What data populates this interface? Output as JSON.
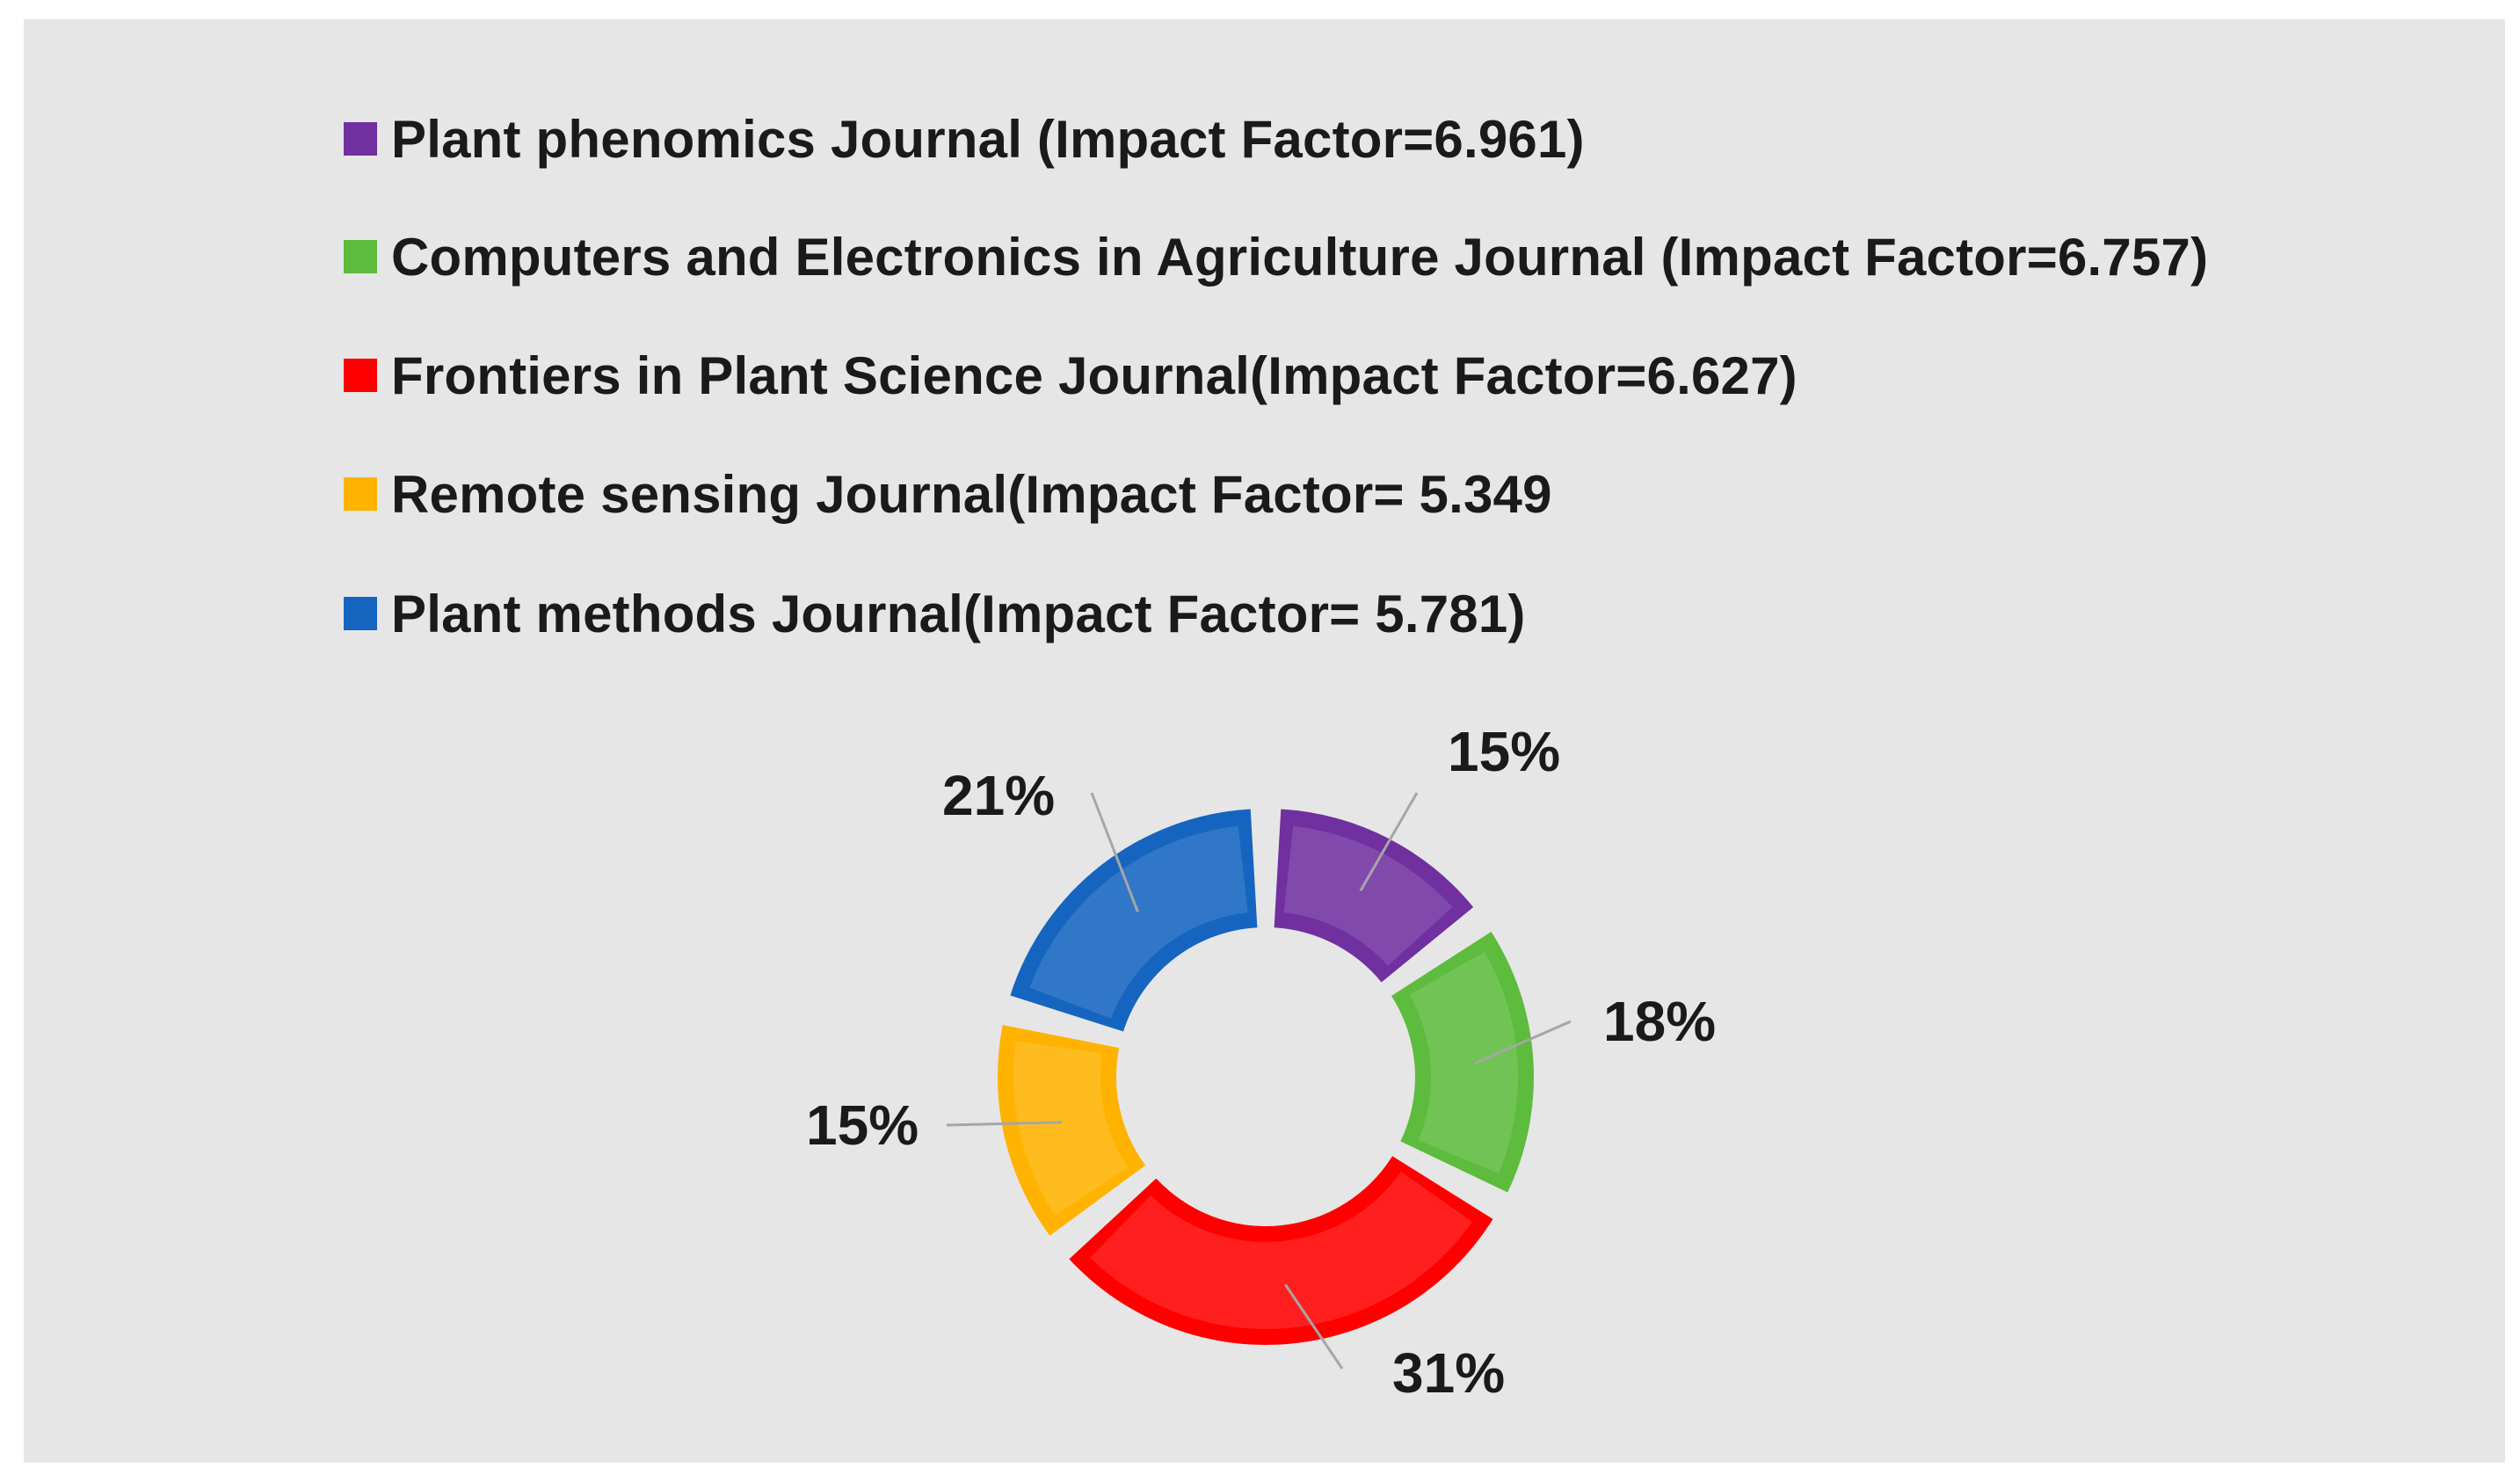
{
  "chart_data": {
    "type": "pie",
    "donut": true,
    "title": "",
    "legend_position": "top",
    "series": [
      {
        "name": "Plant phenomics Journal (Impact Factor=6.961)",
        "value": 15,
        "label": "15%",
        "color": "#7030a0"
      },
      {
        "name": "Computers and Electronics in Agriculture Journal (Impact Factor=6.757)",
        "value": 18,
        "label": "18%",
        "color": "#5dbb3d"
      },
      {
        "name": "Frontiers in Plant Science Journal(Impact Factor=6.627)",
        "value": 31,
        "label": "31%",
        "color": "#ff0000"
      },
      {
        "name": "Remote sensing Journal(Impact Factor= 5.349",
        "value": 15,
        "label": "15%",
        "color": "#ffb300"
      },
      {
        "name": "Plant methods  Journal(Impact Factor= 5.781)",
        "value": 21,
        "label": "21%",
        "color": "#1565c0"
      }
    ],
    "background": "#e6e6e6"
  }
}
